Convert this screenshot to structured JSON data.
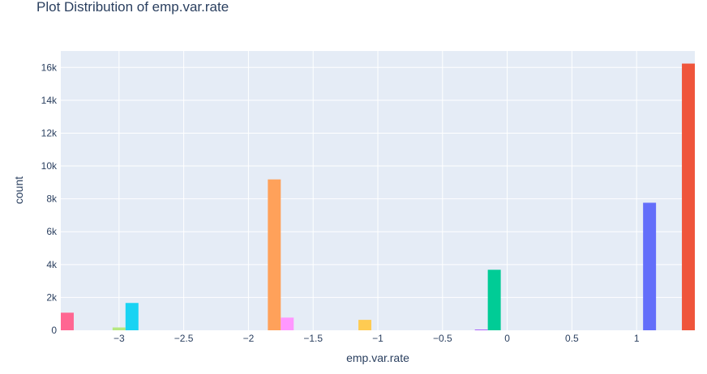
{
  "chart_data": {
    "type": "bar",
    "title": "Plot Distribution of emp.var.rate",
    "xlabel": "emp.var.rate",
    "ylabel": "count",
    "xlim": [
      -3.45,
      1.45
    ],
    "ylim": [
      0,
      17000
    ],
    "x_ticks": [
      -3,
      -2.5,
      -2,
      -1.5,
      -1,
      -0.5,
      0,
      0.5,
      1
    ],
    "x_tick_labels": [
      "−3",
      "−2.5",
      "−2",
      "−1.5",
      "−1",
      "−0.5",
      "0",
      "0.5",
      "1"
    ],
    "y_ticks": [
      0,
      2000,
      4000,
      6000,
      8000,
      10000,
      12000,
      14000,
      16000
    ],
    "y_tick_labels": [
      "0",
      "2k",
      "4k",
      "6k",
      "8k",
      "10k",
      "12k",
      "14k",
      "16k"
    ],
    "bar_width": 0.1,
    "grid": true,
    "background": "#e5ecf6",
    "bars": [
      {
        "x": -3.4,
        "value": 1071,
        "color": "#ff6692"
      },
      {
        "x": -3.0,
        "value": 172,
        "color": "#b6e880"
      },
      {
        "x": -2.9,
        "value": 1663,
        "color": "#19d3f3"
      },
      {
        "x": -1.8,
        "value": 9184,
        "color": "#ffa15a"
      },
      {
        "x": -1.7,
        "value": 773,
        "color": "#ff97ff"
      },
      {
        "x": -1.1,
        "value": 635,
        "color": "#fecb52"
      },
      {
        "x": -0.2,
        "value": 10,
        "color": "#ab63fa"
      },
      {
        "x": -0.1,
        "value": 3683,
        "color": "#00cc96"
      },
      {
        "x": 1.1,
        "value": 7763,
        "color": "#636efa"
      },
      {
        "x": 1.4,
        "value": 16234,
        "color": "#ef553b"
      }
    ]
  }
}
